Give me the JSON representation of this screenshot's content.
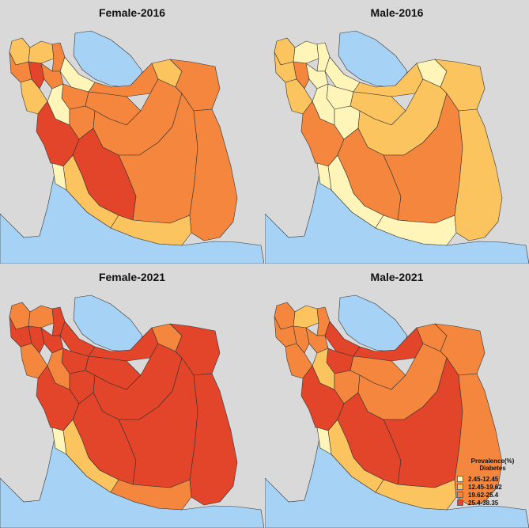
{
  "panels": [
    {
      "title": "Female-2016",
      "levels": [
        2,
        2,
        3,
        1,
        3,
        2,
        3,
        3,
        4,
        3,
        3,
        3,
        2,
        4,
        1,
        3,
        3,
        4,
        3,
        2,
        2,
        3,
        1
      ]
    },
    {
      "title": "Male-2016",
      "levels": [
        2,
        1,
        1,
        1,
        2,
        1,
        2,
        2,
        3,
        1,
        1,
        2,
        2,
        3,
        1,
        1,
        2,
        3,
        3,
        1,
        1,
        2,
        1
      ]
    },
    {
      "title": "Female-2021",
      "levels": [
        3,
        3,
        4,
        4,
        4,
        3,
        4,
        4,
        4,
        4,
        4,
        4,
        3,
        4,
        3,
        4,
        4,
        4,
        4,
        2,
        3,
        4,
        1
      ]
    },
    {
      "title": "Male-2021",
      "levels": [
        3,
        2,
        3,
        4,
        4,
        3,
        3,
        3,
        3,
        3,
        4,
        3,
        3,
        4,
        2,
        3,
        3,
        4,
        4,
        2,
        2,
        3,
        1
      ]
    }
  ],
  "legend": {
    "title_line1": "Prevalence(%)",
    "title_line2": "Diabetes",
    "items": [
      {
        "label": "2.45-12.45",
        "color": "#fff5b8"
      },
      {
        "label": "12.45-19.62",
        "color": "#fcc45f"
      },
      {
        "label": "19.62-25.4",
        "color": "#f4873d"
      },
      {
        "label": "25.4-38.35",
        "color": "#e2452a"
      }
    ]
  },
  "colors": {
    "sea": "#a6d3f5",
    "background": "#d9d9d9",
    "border": "#333333",
    "level_colors": [
      "#fff5b8",
      "#fcc45f",
      "#f4873d",
      "#e2452a",
      "#b2171f"
    ]
  }
}
